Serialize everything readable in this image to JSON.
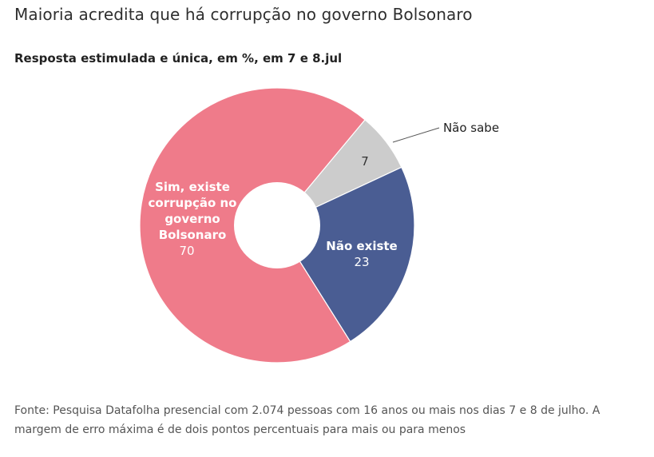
{
  "header": {
    "title": "Maioria acredita que há corrupção no governo Bolsonaro",
    "subtitle": "Resposta estimulada e única, em %, em 7 e 8.jul"
  },
  "chart_data": {
    "type": "pie",
    "donut": true,
    "slices": [
      {
        "name": "Não sabe",
        "label_lines": [
          "Não sabe"
        ],
        "value": 7,
        "color": "#cccccc",
        "label_color": "#333333"
      },
      {
        "name": "Não existe",
        "label_lines": [
          "Não existe"
        ],
        "value": 23,
        "color": "#4a5d93",
        "label_color": "#ffffff"
      },
      {
        "name": "Sim, existe corrupção no governo Bolsonaro",
        "label_lines": [
          "Sim, existe",
          "corrupção no",
          "governo",
          "Bolsonaro"
        ],
        "value": 70,
        "color": "#ef7b8a",
        "label_color": "#ffffff"
      }
    ]
  },
  "footer": {
    "source": "Fonte: Pesquisa Datafolha presencial com 2.074 pessoas com 16 anos ou mais nos dias 7 e 8 de julho. A margem de erro máxima é de dois pontos percentuais para mais ou para menos"
  }
}
